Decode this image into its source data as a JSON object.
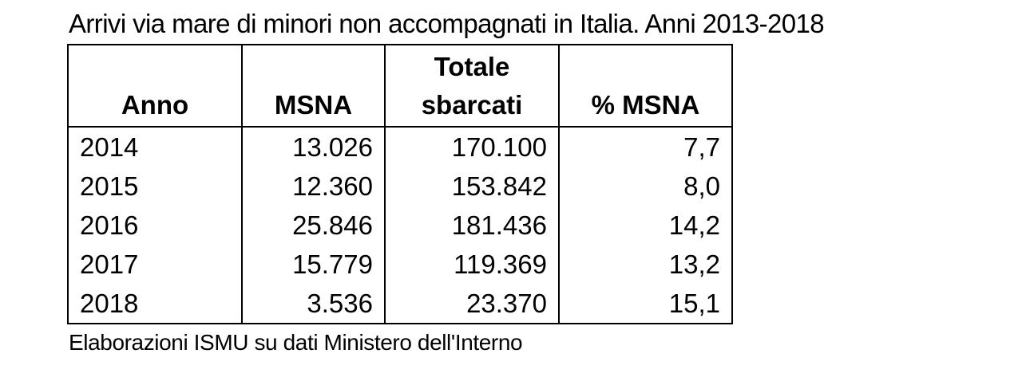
{
  "title": "Arrivi via mare di minori non accompagnati in Italia. Anni 2013-2018",
  "source": "Elaborazioni ISMU su dati Ministero dell'Interno",
  "chart_data": {
    "type": "table",
    "title": "Arrivi via mare di minori non accompagnati in Italia. Anni 2013-2018",
    "columns": [
      {
        "lines": [
          "Anno"
        ]
      },
      {
        "lines": [
          "MSNA"
        ]
      },
      {
        "lines": [
          "Totale",
          "sbarcati"
        ]
      },
      {
        "lines": [
          "% MSNA"
        ]
      }
    ],
    "rows": [
      {
        "anno": "2014",
        "msna": "13.026",
        "totale": "170.100",
        "pct": "7,7"
      },
      {
        "anno": "2015",
        "msna": "12.360",
        "totale": "153.842",
        "pct": "8,0"
      },
      {
        "anno": "2016",
        "msna": "25.846",
        "totale": "181.436",
        "pct": "14,2"
      },
      {
        "anno": "2017",
        "msna": "15.779",
        "totale": "119.369",
        "pct": "13,2"
      },
      {
        "anno": "2018",
        "msna": "3.536",
        "totale": "23.370",
        "pct": "15,1"
      }
    ],
    "values": {
      "years": [
        2014,
        2015,
        2016,
        2017,
        2018
      ],
      "msna": [
        13026,
        12360,
        25846,
        15779,
        3536
      ],
      "totale_sbarcati": [
        170100,
        153842,
        181436,
        119369,
        23370
      ],
      "pct_msna": [
        7.7,
        8.0,
        14.2,
        13.2,
        15.1
      ]
    }
  }
}
